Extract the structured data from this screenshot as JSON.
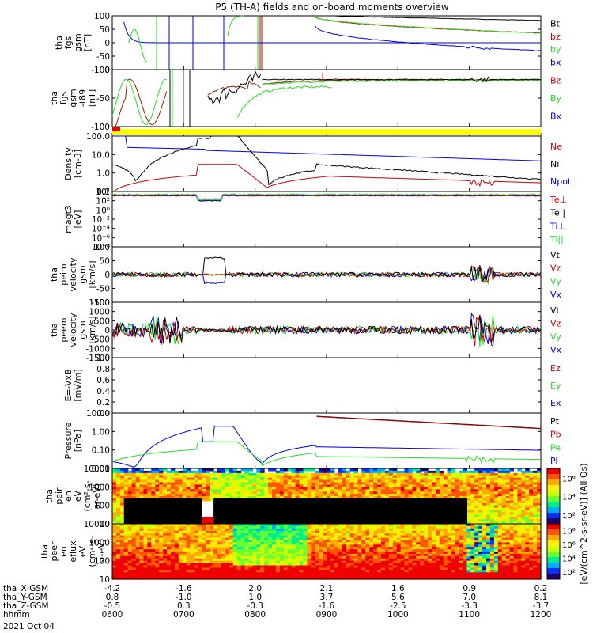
{
  "title": "P5 (TH-A) fields and on-board moments overview",
  "colors": {
    "black": "#000000",
    "red": "#cc0000",
    "green": "#22dd22",
    "blue": "#0000ee",
    "yellow": "#ffff00"
  },
  "chart_data": [
    {
      "type": "line",
      "ylabel": [
        "tha",
        "fgs",
        "gsm",
        "[nT]"
      ],
      "ylim": [
        -100,
        100
      ],
      "ticks": [
        "100",
        "50",
        "0",
        "-50",
        "-100"
      ],
      "series": [
        {
          "name": "Bt",
          "color": "black"
        },
        {
          "name": "bz",
          "color": "red"
        },
        {
          "name": "by",
          "color": "green"
        },
        {
          "name": "bx",
          "color": "blue"
        }
      ]
    },
    {
      "type": "line",
      "ylabel": [
        "tha",
        "fgs",
        "gsm",
        "-t89",
        "[nT]"
      ],
      "ylim": [
        -125,
        25
      ],
      "ticks": [
        "0",
        "-50",
        "-100"
      ],
      "series": [
        {
          "name": "Bz",
          "color": "red"
        },
        {
          "name": "By",
          "color": "green"
        },
        {
          "name": "Bx",
          "color": "blue"
        }
      ]
    },
    {
      "type": "bar",
      "ylabel": [],
      "note": "mode flag bar (red then yellow)"
    },
    {
      "type": "line",
      "ylabel": [
        "Density",
        "[cm-3]"
      ],
      "log": true,
      "ticks": [
        "100.0",
        "10.0",
        "1.0",
        "0.1"
      ],
      "series": [
        {
          "name": "Ne",
          "color": "red"
        },
        {
          "name": "Ni",
          "color": "black"
        },
        {
          "name": "Npot",
          "color": "blue"
        }
      ]
    },
    {
      "type": "line",
      "ylabel": [
        "magt3",
        "[eV]"
      ],
      "log": true,
      "ticks": [
        "10⁴",
        "10²",
        "10⁰",
        "10⁻²",
        "10⁻⁴",
        "10⁻⁶",
        "10⁻⁸"
      ],
      "series": [
        {
          "name": "Te⊥",
          "color": "red"
        },
        {
          "name": "Te||",
          "color": "black"
        },
        {
          "name": "Ti⊥",
          "color": "blue"
        },
        {
          "name": "Ti||",
          "color": "green"
        }
      ]
    },
    {
      "type": "line",
      "ylabel": [
        "tha",
        "peim",
        "velocity",
        "gsm",
        "[km/s]"
      ],
      "ylim": [
        -100,
        100
      ],
      "ticks": [
        "100",
        "50",
        "0",
        "-50",
        "-100"
      ],
      "series": [
        {
          "name": "Vt",
          "color": "black"
        },
        {
          "name": "Vz",
          "color": "red"
        },
        {
          "name": "Vy",
          "color": "green"
        },
        {
          "name": "Vx",
          "color": "blue"
        }
      ]
    },
    {
      "type": "line",
      "ylabel": [
        "tha",
        "peem",
        "velocity",
        "gsm",
        "[km/s]"
      ],
      "ylim": [
        -1500,
        1500
      ],
      "ticks": [
        "1500",
        "1000",
        "500",
        "0",
        "-500",
        "-1000",
        "-1500"
      ],
      "series": [
        {
          "name": "Vt",
          "color": "black"
        },
        {
          "name": "Vz",
          "color": "red"
        },
        {
          "name": "Vy",
          "color": "green"
        },
        {
          "name": "Vx",
          "color": "blue"
        }
      ]
    },
    {
      "type": "line",
      "ylabel": [
        "E=-VxB",
        "[mV/m]"
      ],
      "ylim": [
        0,
        1
      ],
      "ticks": [
        "1.0",
        "0.8",
        "0.6",
        "0.4",
        "0.2",
        "0.0"
      ],
      "series": [
        {
          "name": "Ez",
          "color": "red"
        },
        {
          "name": "Ey",
          "color": "green"
        },
        {
          "name": "Ex",
          "color": "blue"
        }
      ]
    },
    {
      "type": "line",
      "ylabel": [
        "Pressure",
        "[nPa]"
      ],
      "log": true,
      "ticks": [
        "10.00",
        "1.00",
        "0.10",
        "0.01"
      ],
      "series": [
        {
          "name": "Pt",
          "color": "black"
        },
        {
          "name": "Pb",
          "color": "red"
        },
        {
          "name": "Pe",
          "color": "green"
        },
        {
          "name": "Pi",
          "color": "blue"
        }
      ]
    },
    {
      "type": "heatmap",
      "ylabel": [
        "tha",
        "peir",
        "en",
        "eV",
        "(cm²-s-",
        "sr-eV)"
      ],
      "ticks": [
        "10000",
        "1000",
        "100",
        "10"
      ],
      "colorbar_ticks": [
        "10⁶",
        "10⁴",
        "10²"
      ]
    },
    {
      "type": "heatmap",
      "ylabel": [
        "tha",
        "peer",
        "en",
        "eflux",
        "eV",
        "(cm²-s-",
        "sr-eV)"
      ],
      "ticks": [
        "10000",
        "1000",
        "100",
        "10"
      ],
      "colorbar_ticks": [
        "10⁸",
        "10⁶",
        "10⁴",
        "10²"
      ]
    }
  ],
  "colorbar_label": "[eV/(cm^2-s-sr-eV)] (All Qs)",
  "xaxis": {
    "rows": [
      {
        "label": "tha_X-GSM",
        "values": [
          "-4.2",
          "-1.6",
          "2.0",
          "2.1",
          "1.6",
          "0.9",
          "0.2"
        ]
      },
      {
        "label": "tha_Y-GSM",
        "values": [
          "0.8",
          "-1.0",
          "1.0",
          "3.7",
          "5.6",
          "7.0",
          "8.1"
        ]
      },
      {
        "label": "tha_Z-GSM",
        "values": [
          "-0.5",
          "0.3",
          "-0.3",
          "-1.6",
          "-2.5",
          "-3.3",
          "-3.7"
        ]
      },
      {
        "label": "hhmm",
        "values": [
          "0600",
          "0700",
          "0800",
          "0900",
          "1000",
          "1100",
          "1200"
        ]
      }
    ],
    "date": "2021 Oct 04"
  }
}
